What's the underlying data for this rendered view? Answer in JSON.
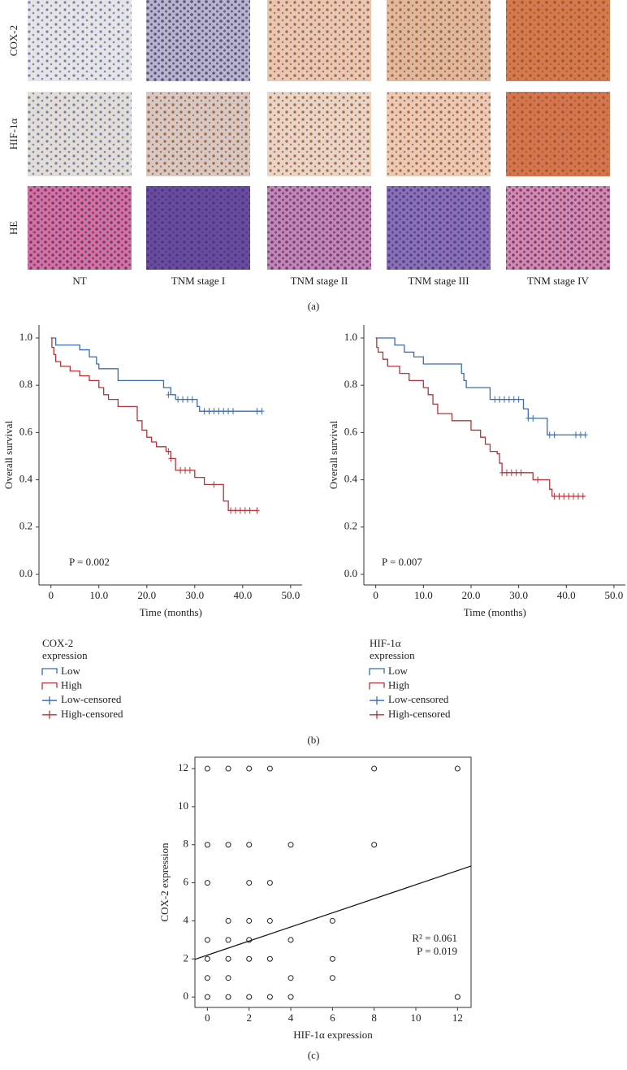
{
  "panel_a": {
    "row_labels": [
      "COX-2",
      "HIF-1α",
      "HE"
    ],
    "column_labels": [
      "NT",
      "TNM stage I",
      "TNM stage II",
      "TNM stage III",
      "TNM stage IV"
    ],
    "caption": "(a)"
  },
  "panel_b_caption": "(b)",
  "panel_c_caption": "(c)",
  "chart_data": [
    {
      "type": "step",
      "x_label": "Time (months)",
      "y_label": "Overall survival",
      "annotation": "P = 0.002",
      "legend_title": [
        "COX-2",
        "expression"
      ],
      "xlim": [
        -2.5,
        52.4
      ],
      "ylim": [
        -0.045,
        1.055
      ],
      "xticks": [
        0,
        {
          "value": 10,
          "label": "10.0"
        },
        {
          "value": 20,
          "label": "20.0"
        },
        {
          "value": 30,
          "label": "30.0"
        },
        {
          "value": 40,
          "label": "40.0"
        },
        {
          "value": 50,
          "label": "50.0"
        }
      ],
      "yticks": [
        {
          "value": 0,
          "label": "0.0"
        },
        {
          "value": 0.2,
          "label": "0.2"
        },
        {
          "value": 0.4,
          "label": "0.4"
        },
        {
          "value": 0.6,
          "label": "0.6"
        },
        {
          "value": 0.8,
          "label": "0.8"
        },
        {
          "value": 1,
          "label": "1.0"
        }
      ],
      "series": [
        {
          "name": "Low",
          "color": "#3a6cb4",
          "style": "step",
          "x": [
            0,
            1,
            6,
            8,
            9.5,
            10,
            14,
            23.5,
            25,
            26,
            30.5,
            31,
            44
          ],
          "values": [
            1.0,
            0.97,
            0.95,
            0.92,
            0.89,
            0.87,
            0.82,
            0.79,
            0.76,
            0.74,
            0.71,
            0.69,
            0.69
          ]
        },
        {
          "name": "High",
          "color": "#b5343a",
          "style": "step",
          "x": [
            0,
            0.2,
            0.6,
            1,
            2,
            4,
            6,
            8,
            10,
            11,
            12,
            14,
            18,
            19,
            20,
            21,
            22,
            24,
            25,
            26,
            30,
            32,
            36,
            37,
            43
          ],
          "values": [
            1.0,
            0.96,
            0.93,
            0.9,
            0.88,
            0.86,
            0.84,
            0.82,
            0.79,
            0.76,
            0.74,
            0.71,
            0.65,
            0.61,
            0.58,
            0.56,
            0.54,
            0.52,
            0.49,
            0.44,
            0.41,
            0.38,
            0.31,
            0.27,
            0.27
          ]
        },
        {
          "name": "Low-censored",
          "color": "#3a6cb4",
          "style": "censor",
          "x": [
            24.5,
            26.5,
            27.5,
            28.5,
            29.5,
            32,
            33,
            34,
            35,
            36,
            37,
            38,
            43,
            44
          ],
          "values": [
            0.76,
            0.74,
            0.74,
            0.74,
            0.74,
            0.69,
            0.69,
            0.69,
            0.69,
            0.69,
            0.69,
            0.69,
            0.69,
            0.69
          ]
        },
        {
          "name": "High-censored",
          "color": "#b5343a",
          "style": "censor",
          "x": [
            24.5,
            25,
            27,
            28,
            29,
            34,
            37.5,
            38.5,
            39.5,
            40.5,
            41.5,
            43
          ],
          "values": [
            0.52,
            0.49,
            0.44,
            0.44,
            0.44,
            0.38,
            0.27,
            0.27,
            0.27,
            0.27,
            0.27,
            0.27
          ]
        }
      ]
    },
    {
      "type": "step",
      "x_label": "Time (months)",
      "y_label": "Overall survival",
      "annotation": "P = 0.007",
      "legend_title": [
        "HIF-1α",
        "expression"
      ],
      "xlim": [
        -2.5,
        52.4
      ],
      "ylim": [
        -0.045,
        1.055
      ],
      "xticks": [
        0,
        {
          "value": 10,
          "label": "10.0"
        },
        {
          "value": 20,
          "label": "20.0"
        },
        {
          "value": 30,
          "label": "30.0"
        },
        {
          "value": 40,
          "label": "40.0"
        },
        {
          "value": 50,
          "label": "50.0"
        }
      ],
      "yticks": [
        {
          "value": 0,
          "label": "0.0"
        },
        {
          "value": 0.2,
          "label": "0.2"
        },
        {
          "value": 0.4,
          "label": "0.4"
        },
        {
          "value": 0.6,
          "label": "0.6"
        },
        {
          "value": 0.8,
          "label": "0.8"
        },
        {
          "value": 1,
          "label": "1.0"
        }
      ],
      "series": [
        {
          "name": "Low",
          "color": "#3a6cb4",
          "style": "step",
          "x": [
            0,
            4,
            6,
            8,
            10,
            18,
            18.5,
            19,
            24,
            31,
            32,
            36,
            44
          ],
          "values": [
            1.0,
            0.97,
            0.94,
            0.92,
            0.89,
            0.85,
            0.82,
            0.79,
            0.74,
            0.7,
            0.66,
            0.59,
            0.59
          ]
        },
        {
          "name": "High",
          "color": "#b5343a",
          "style": "step",
          "x": [
            0,
            0.2,
            0.5,
            1.5,
            2.5,
            5,
            7,
            10,
            11,
            12,
            13,
            16,
            20,
            22,
            23,
            24,
            25.5,
            26,
            26.5,
            33,
            36.5,
            37,
            44
          ],
          "values": [
            1.0,
            0.96,
            0.94,
            0.91,
            0.88,
            0.85,
            0.82,
            0.79,
            0.76,
            0.72,
            0.68,
            0.65,
            0.61,
            0.58,
            0.55,
            0.52,
            0.51,
            0.47,
            0.43,
            0.4,
            0.36,
            0.33,
            0.33
          ]
        },
        {
          "name": "Low-censored",
          "color": "#3a6cb4",
          "style": "censor",
          "x": [
            25,
            26,
            27,
            28,
            29,
            30,
            32,
            33,
            36.5,
            37.5,
            42,
            43,
            44
          ],
          "values": [
            0.74,
            0.74,
            0.74,
            0.74,
            0.74,
            0.74,
            0.66,
            0.66,
            0.59,
            0.59,
            0.59,
            0.59,
            0.59
          ]
        },
        {
          "name": "High-censored",
          "color": "#b5343a",
          "style": "censor",
          "x": [
            26.5,
            27.5,
            28.5,
            29.5,
            30.5,
            34,
            37.5,
            38.5,
            39.5,
            40.5,
            41.5,
            42.5,
            43.5
          ],
          "values": [
            0.43,
            0.43,
            0.43,
            0.43,
            0.43,
            0.4,
            0.33,
            0.33,
            0.33,
            0.33,
            0.33,
            0.33,
            0.33
          ]
        }
      ]
    },
    {
      "type": "scatter",
      "x_label": "HIF-1α expression",
      "y_label": "COX-2 expression",
      "annotations": [
        "R² = 0.061",
        "P = 0.019"
      ],
      "xlim": [
        -0.6,
        12.65
      ],
      "ylim": [
        -0.55,
        12.6
      ],
      "xticks": [
        0,
        2,
        4,
        6,
        8,
        10,
        12
      ],
      "yticks": [
        0,
        2,
        4,
        6,
        8,
        10,
        12
      ],
      "color": "#222222",
      "x": [
        0,
        1,
        2,
        3,
        8,
        12,
        0,
        1,
        2,
        4,
        8,
        0,
        2,
        3,
        1,
        2,
        3,
        6,
        0,
        1,
        2,
        4,
        0,
        1,
        2,
        3,
        6,
        0,
        1,
        4,
        6,
        0,
        1,
        2,
        3,
        4,
        12
      ],
      "values": [
        12,
        12,
        12,
        12,
        12,
        12,
        8,
        8,
        8,
        8,
        8,
        6,
        6,
        6,
        4,
        4,
        4,
        4,
        3,
        3,
        3,
        3,
        2,
        2,
        2,
        2,
        2,
        1,
        1,
        1,
        1,
        0,
        0,
        0,
        0,
        0,
        0
      ],
      "fit": {
        "intercept": 2.2,
        "slope": 0.37
      }
    }
  ]
}
